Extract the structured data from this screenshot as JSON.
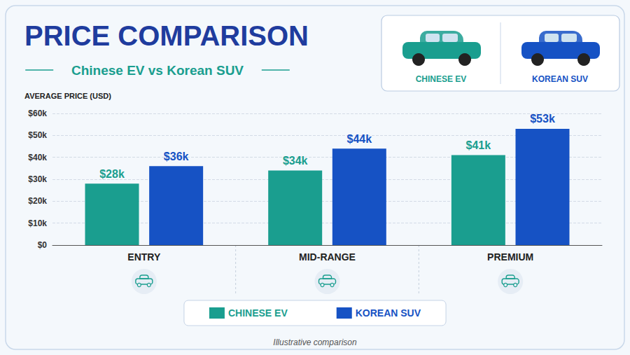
{
  "chart_data": {
    "type": "bar",
    "title": "PRICE COMPARISON",
    "subtitle": "Chinese EV vs Korean SUV",
    "y_label": "AVERAGE PRICE (USD)",
    "categories": [
      "ENTRY",
      "MID-RANGE",
      "PREMIUM"
    ],
    "series": [
      {
        "name": "CHINESE EV",
        "color": "#1a9e8f",
        "values": [
          28,
          34,
          41
        ],
        "value_labels": [
          "$28k",
          "$34k",
          "$41k"
        ]
      },
      {
        "name": "KOREAN SUV",
        "color": "#1652c4",
        "values": [
          36,
          44,
          53
        ],
        "value_labels": [
          "$36k",
          "$44k",
          "$53k"
        ]
      }
    ],
    "ylim": [
      0,
      60
    ],
    "yticks": [
      {
        "value": 0,
        "label": "$0"
      },
      {
        "value": 10,
        "label": "$10k"
      },
      {
        "value": 20,
        "label": "$20k"
      },
      {
        "value": 30,
        "label": "$30k"
      },
      {
        "value": 40,
        "label": "$40k"
      },
      {
        "value": 50,
        "label": "$50k"
      },
      {
        "value": 60,
        "label": "$60k"
      }
    ],
    "grid": true,
    "legend": "bottom",
    "data_labels": true,
    "annotations": [
      "Illustrative comparison"
    ]
  }
}
